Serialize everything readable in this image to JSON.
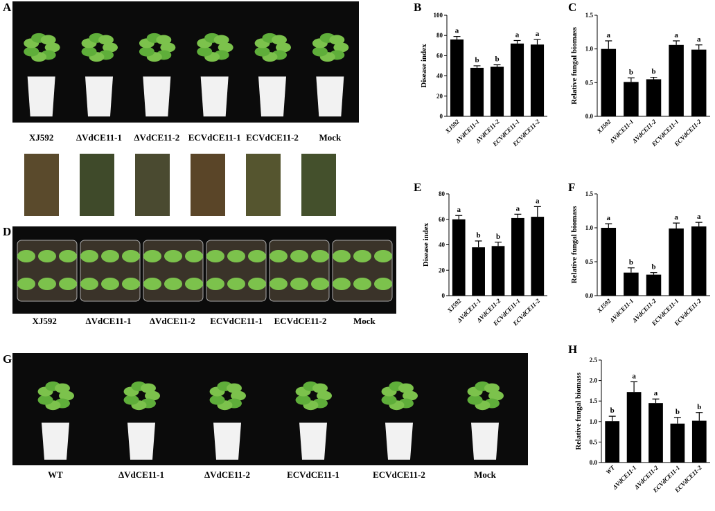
{
  "panels": {
    "A": "A",
    "B": "B",
    "C": "C",
    "D": "D",
    "E": "E",
    "F": "F",
    "G": "G",
    "H": "H"
  },
  "photo_a": {
    "labels": [
      "XJ592",
      "ΔVdCE11-1",
      "ΔVdCE11-2",
      "ECVdCE11-1",
      "ECVdCE11-2",
      "Mock"
    ]
  },
  "photo_d": {
    "labels": [
      "XJ592",
      "ΔVdCE11-1",
      "ΔVdCE11-2",
      "ECVdCE11-1",
      "ECVdCE11-2",
      "Mock"
    ]
  },
  "photo_g": {
    "labels": [
      "WT",
      "ΔVdCE11-1",
      "ΔVdCE11-2",
      "ECVdCE11-1",
      "ECVdCE11-2",
      "Mock"
    ]
  },
  "chart_data": [
    {
      "type": "bar",
      "y_label": "Disease index",
      "color": "#000000",
      "categories": [
        "XJ592",
        "ΔVdCE11-1",
        "ΔVdCE11-2",
        "ECVdCE11-1",
        "ECVdCE11-2"
      ],
      "values": [
        76,
        48,
        49,
        72,
        71
      ],
      "errors": [
        3,
        2,
        2,
        3,
        5
      ],
      "annotations": [
        "a",
        "b",
        "b",
        "a",
        "a"
      ],
      "ylim": [
        0,
        100
      ],
      "yticks": [
        0,
        20,
        40,
        60,
        80,
        100
      ]
    },
    {
      "type": "bar",
      "y_label": "Relative fungal biomass",
      "color": "#000000",
      "categories": [
        "XJ592",
        "ΔVdCE11-1",
        "ΔVdCE11-2",
        "ECVdCE11-1",
        "ECVdCE11-2"
      ],
      "values": [
        1.0,
        0.51,
        0.55,
        1.06,
        0.99
      ],
      "errors": [
        0.12,
        0.06,
        0.03,
        0.06,
        0.07
      ],
      "annotations": [
        "a",
        "b",
        "b",
        "a",
        "a"
      ],
      "ylim": [
        0,
        1.5
      ],
      "yticks": [
        {
          "value": 0,
          "label": "0.0"
        },
        0.5,
        {
          "value": 1,
          "label": "1.0"
        },
        1.5
      ]
    },
    {
      "type": "bar",
      "y_label": "Disease index",
      "color": "#000000",
      "categories": [
        "XJ592",
        "ΔVdCE11-1",
        "ΔVdCE11-2",
        "ECVdCE11-1",
        "ECVdCE11-2"
      ],
      "values": [
        60,
        38,
        39,
        61,
        62
      ],
      "errors": [
        3,
        5,
        3,
        3,
        8
      ],
      "annotations": [
        "a",
        "b",
        "b",
        "a",
        "a"
      ],
      "ylim": [
        0,
        80
      ],
      "yticks": [
        0,
        20,
        40,
        60,
        80
      ]
    },
    {
      "type": "bar",
      "y_label": "Relative fungal biomass",
      "color": "#000000",
      "categories": [
        "XJ592",
        "ΔVdCE11-1",
        "ΔVdCE11-2",
        "ECVdCE11-1",
        "ECVdCE11-2"
      ],
      "values": [
        1.0,
        0.34,
        0.31,
        0.99,
        1.02
      ],
      "errors": [
        0.06,
        0.07,
        0.03,
        0.08,
        0.06
      ],
      "annotations": [
        "a",
        "b",
        "b",
        "a",
        "a"
      ],
      "ylim": [
        0,
        1.5
      ],
      "yticks": [
        {
          "value": 0,
          "label": "0.0"
        },
        0.5,
        {
          "value": 1,
          "label": "1.0"
        },
        1.5
      ]
    },
    {
      "type": "bar",
      "y_label": "Relative fungal biomass",
      "color": "#000000",
      "categories": [
        "WT",
        "ΔVdCE11-1",
        "ΔVdCE11-2",
        "ECVdCE11-1",
        "ECVdCE11-2"
      ],
      "values": [
        1.01,
        1.72,
        1.45,
        0.95,
        1.02
      ],
      "errors": [
        0.12,
        0.25,
        0.1,
        0.15,
        0.2
      ],
      "annotations": [
        "b",
        "a",
        "a",
        "b",
        "b"
      ],
      "ylim": [
        0,
        2.5
      ],
      "yticks": [
        {
          "value": 0,
          "label": "0.0"
        },
        0.5,
        {
          "value": 1,
          "label": "1.0"
        },
        1.5,
        {
          "value": 2,
          "label": "2.0"
        },
        2.5
      ]
    }
  ]
}
